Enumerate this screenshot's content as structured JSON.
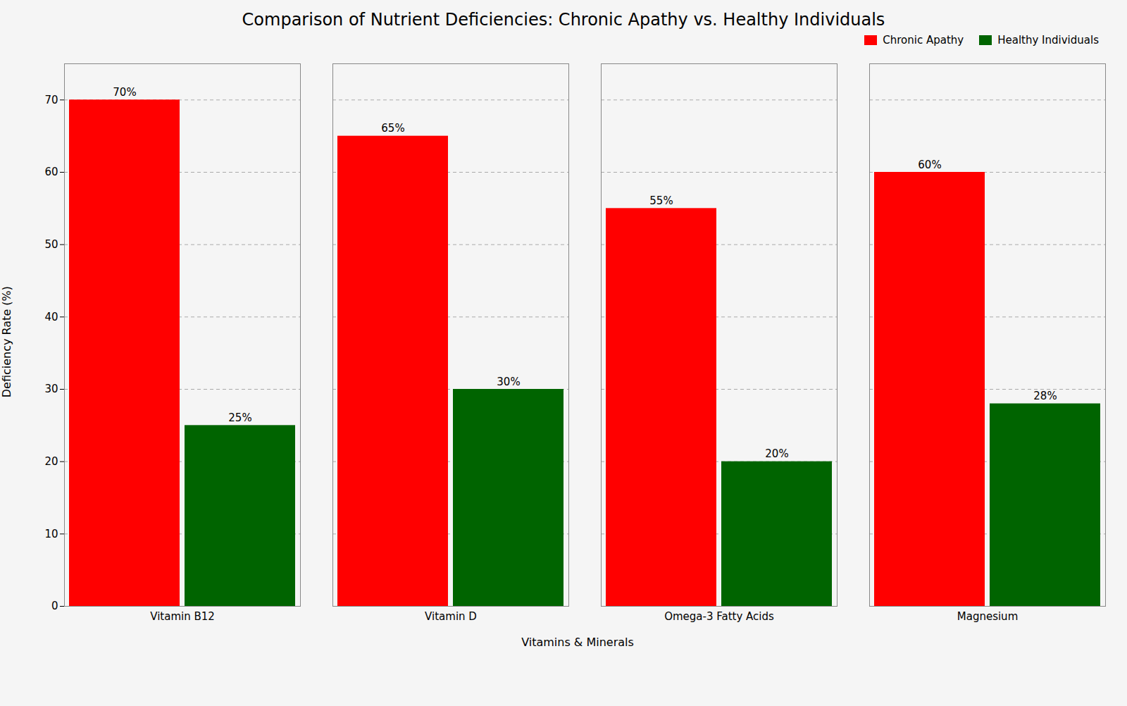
{
  "chart_data": {
    "type": "bar",
    "title": "Comparison of Nutrient Deficiencies: Chronic Apathy vs. Healthy Individuals",
    "xlabel": "Vitamins & Minerals",
    "ylabel": "Deficiency Rate (%)",
    "categories": [
      "Vitamin B12",
      "Vitamin D",
      "Omega-3 Fatty Acids",
      "Magnesium"
    ],
    "series": [
      {
        "name": "Chronic Apathy",
        "color": "#FF0000",
        "values": [
          70,
          65,
          55,
          60
        ],
        "value_labels": [
          "70%",
          "65%",
          "55%",
          "60%"
        ]
      },
      {
        "name": "Healthy Individuals",
        "color": "#006400",
        "values": [
          25,
          30,
          20,
          28
        ],
        "value_labels": [
          "25%",
          "30%",
          "20%",
          "28%"
        ]
      }
    ],
    "ylim": [
      0,
      75
    ],
    "yticks": [
      0,
      10,
      20,
      30,
      40,
      50,
      60,
      70
    ],
    "grid": true,
    "legend": "upper right",
    "data_labels": true
  }
}
